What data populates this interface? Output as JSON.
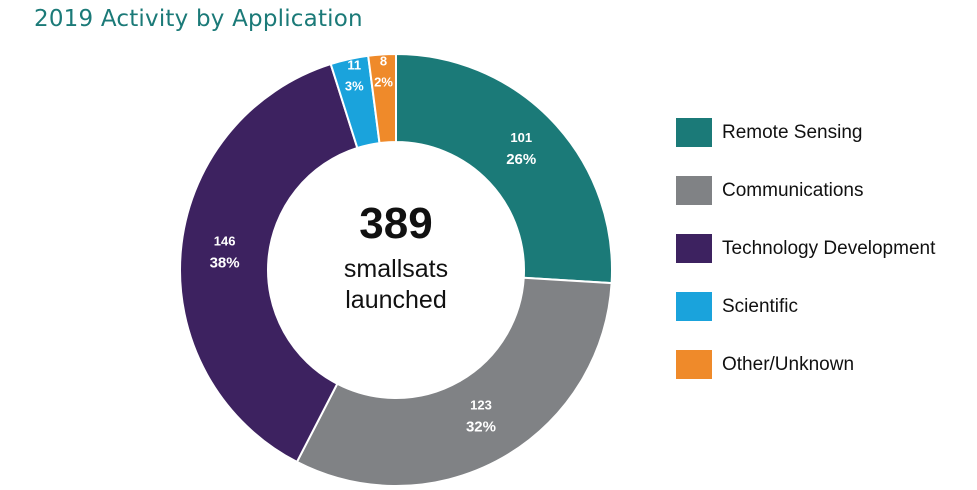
{
  "title": "2019 Activity by Application",
  "center": {
    "total": "389",
    "line1": "smallsats",
    "line2": "launched"
  },
  "chart_data": {
    "type": "pie",
    "title": "2019 Activity by Application",
    "total": 389,
    "legend_position": "right",
    "slices": [
      {
        "label": "Remote Sensing",
        "value": 101,
        "percent": "26%",
        "color": "#1b7a78"
      },
      {
        "label": "Communications",
        "value": 123,
        "percent": "32%",
        "color": "#808285"
      },
      {
        "label": "Technology Development",
        "value": 146,
        "percent": "38%",
        "color": "#3d2260"
      },
      {
        "label": "Scientific",
        "value": 11,
        "percent": "3%",
        "color": "#1aa3dc"
      },
      {
        "label": "Other/Unknown",
        "value": 8,
        "percent": "2%",
        "color": "#ef8a2a"
      }
    ]
  }
}
